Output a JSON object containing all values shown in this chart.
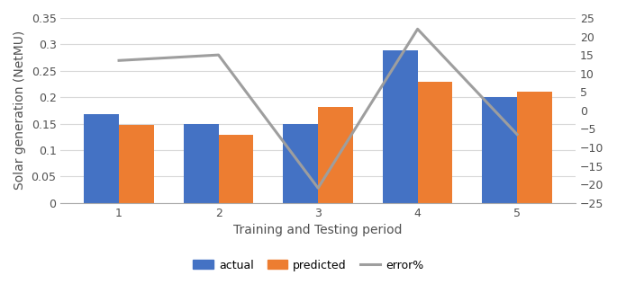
{
  "periods": [
    1,
    2,
    3,
    4,
    5
  ],
  "actual": [
    0.168,
    0.15,
    0.15,
    0.289,
    0.2
  ],
  "predicted": [
    0.148,
    0.128,
    0.181,
    0.23,
    0.21
  ],
  "error_pct": [
    13.5,
    15.0,
    -21.0,
    22.0,
    -6.5
  ],
  "bar_color_actual": "#4472C4",
  "bar_color_predicted": "#ED7D31",
  "line_color_error": "#9E9E9E",
  "ylabel_left": "Solar generation (NetMU)",
  "xlabel": "Training and Testing period",
  "ylim_left": [
    0,
    0.35
  ],
  "ylim_right": [
    -25,
    25
  ],
  "yticks_left": [
    0,
    0.05,
    0.1,
    0.15,
    0.2,
    0.25,
    0.3,
    0.35
  ],
  "yticklabels_left": [
    "0",
    "0.05",
    "0.1",
    "0.15",
    "0.2",
    "0.25",
    "0.3",
    "0.35"
  ],
  "yticks_right": [
    -25,
    -20,
    -15,
    -10,
    -5,
    0,
    5,
    10,
    15,
    20,
    25
  ],
  "bar_width": 0.35,
  "legend_labels": [
    "actual",
    "predicted",
    "error%"
  ],
  "figsize": [
    6.85,
    3.16
  ],
  "dpi": 100
}
